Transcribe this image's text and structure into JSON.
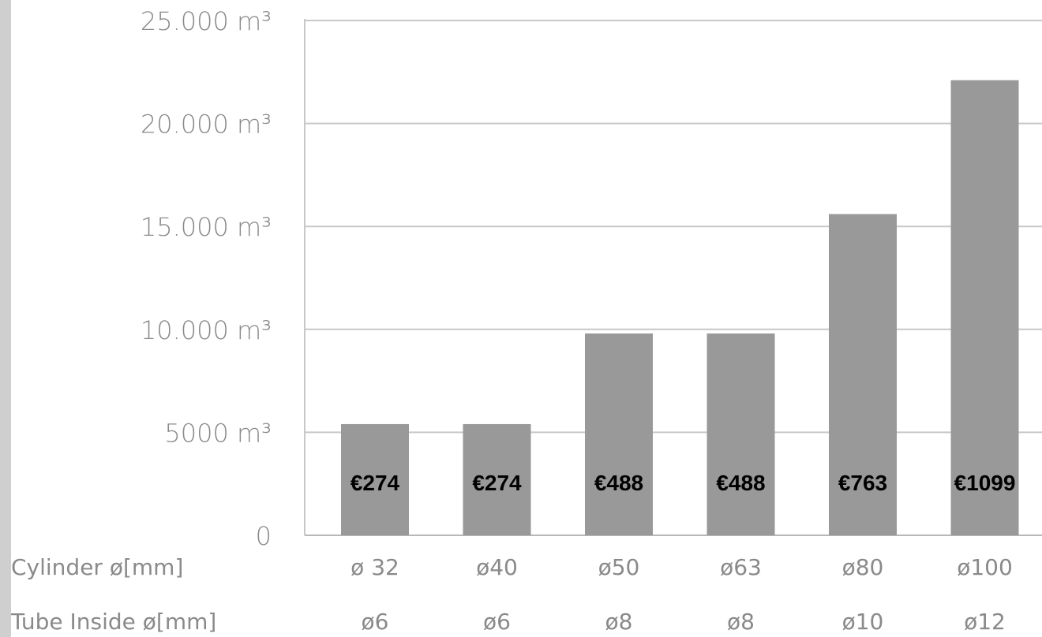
{
  "chart_data": {
    "type": "bar",
    "categories": [
      "ø 32",
      "ø40",
      "ø50",
      "ø63",
      "ø80",
      "ø100"
    ],
    "values": [
      5400,
      5400,
      9800,
      9800,
      15600,
      22100
    ],
    "ylim": [
      0,
      25000
    ],
    "y_ticks": [
      {
        "value": 0,
        "label": "0"
      },
      {
        "value": 5000,
        "label": "5000 m³"
      },
      {
        "value": 10000,
        "label": "10.000 m³"
      },
      {
        "value": 15000,
        "label": "15.000 m³"
      },
      {
        "value": 20000,
        "label": "20.000 m³"
      },
      {
        "value": 25000,
        "label": "25.000 m³"
      }
    ],
    "bar_labels": [
      "€274",
      "€274",
      "€488",
      "€488",
      "€763",
      "€1099"
    ],
    "row_labels": {
      "cylinder": "Cylinder ø[mm]",
      "tube": "Tube Inside ø[mm]"
    },
    "tube_values": [
      "ø6",
      "ø6",
      "ø8",
      "ø8",
      "ø10",
      "ø12"
    ],
    "grid": true,
    "colors": {
      "bar": "#999999",
      "grid": "#c8c8c8",
      "text": "#8a8a8a",
      "price": "#000000",
      "background": "#ffffff",
      "frame": "#cfcfcf"
    }
  }
}
